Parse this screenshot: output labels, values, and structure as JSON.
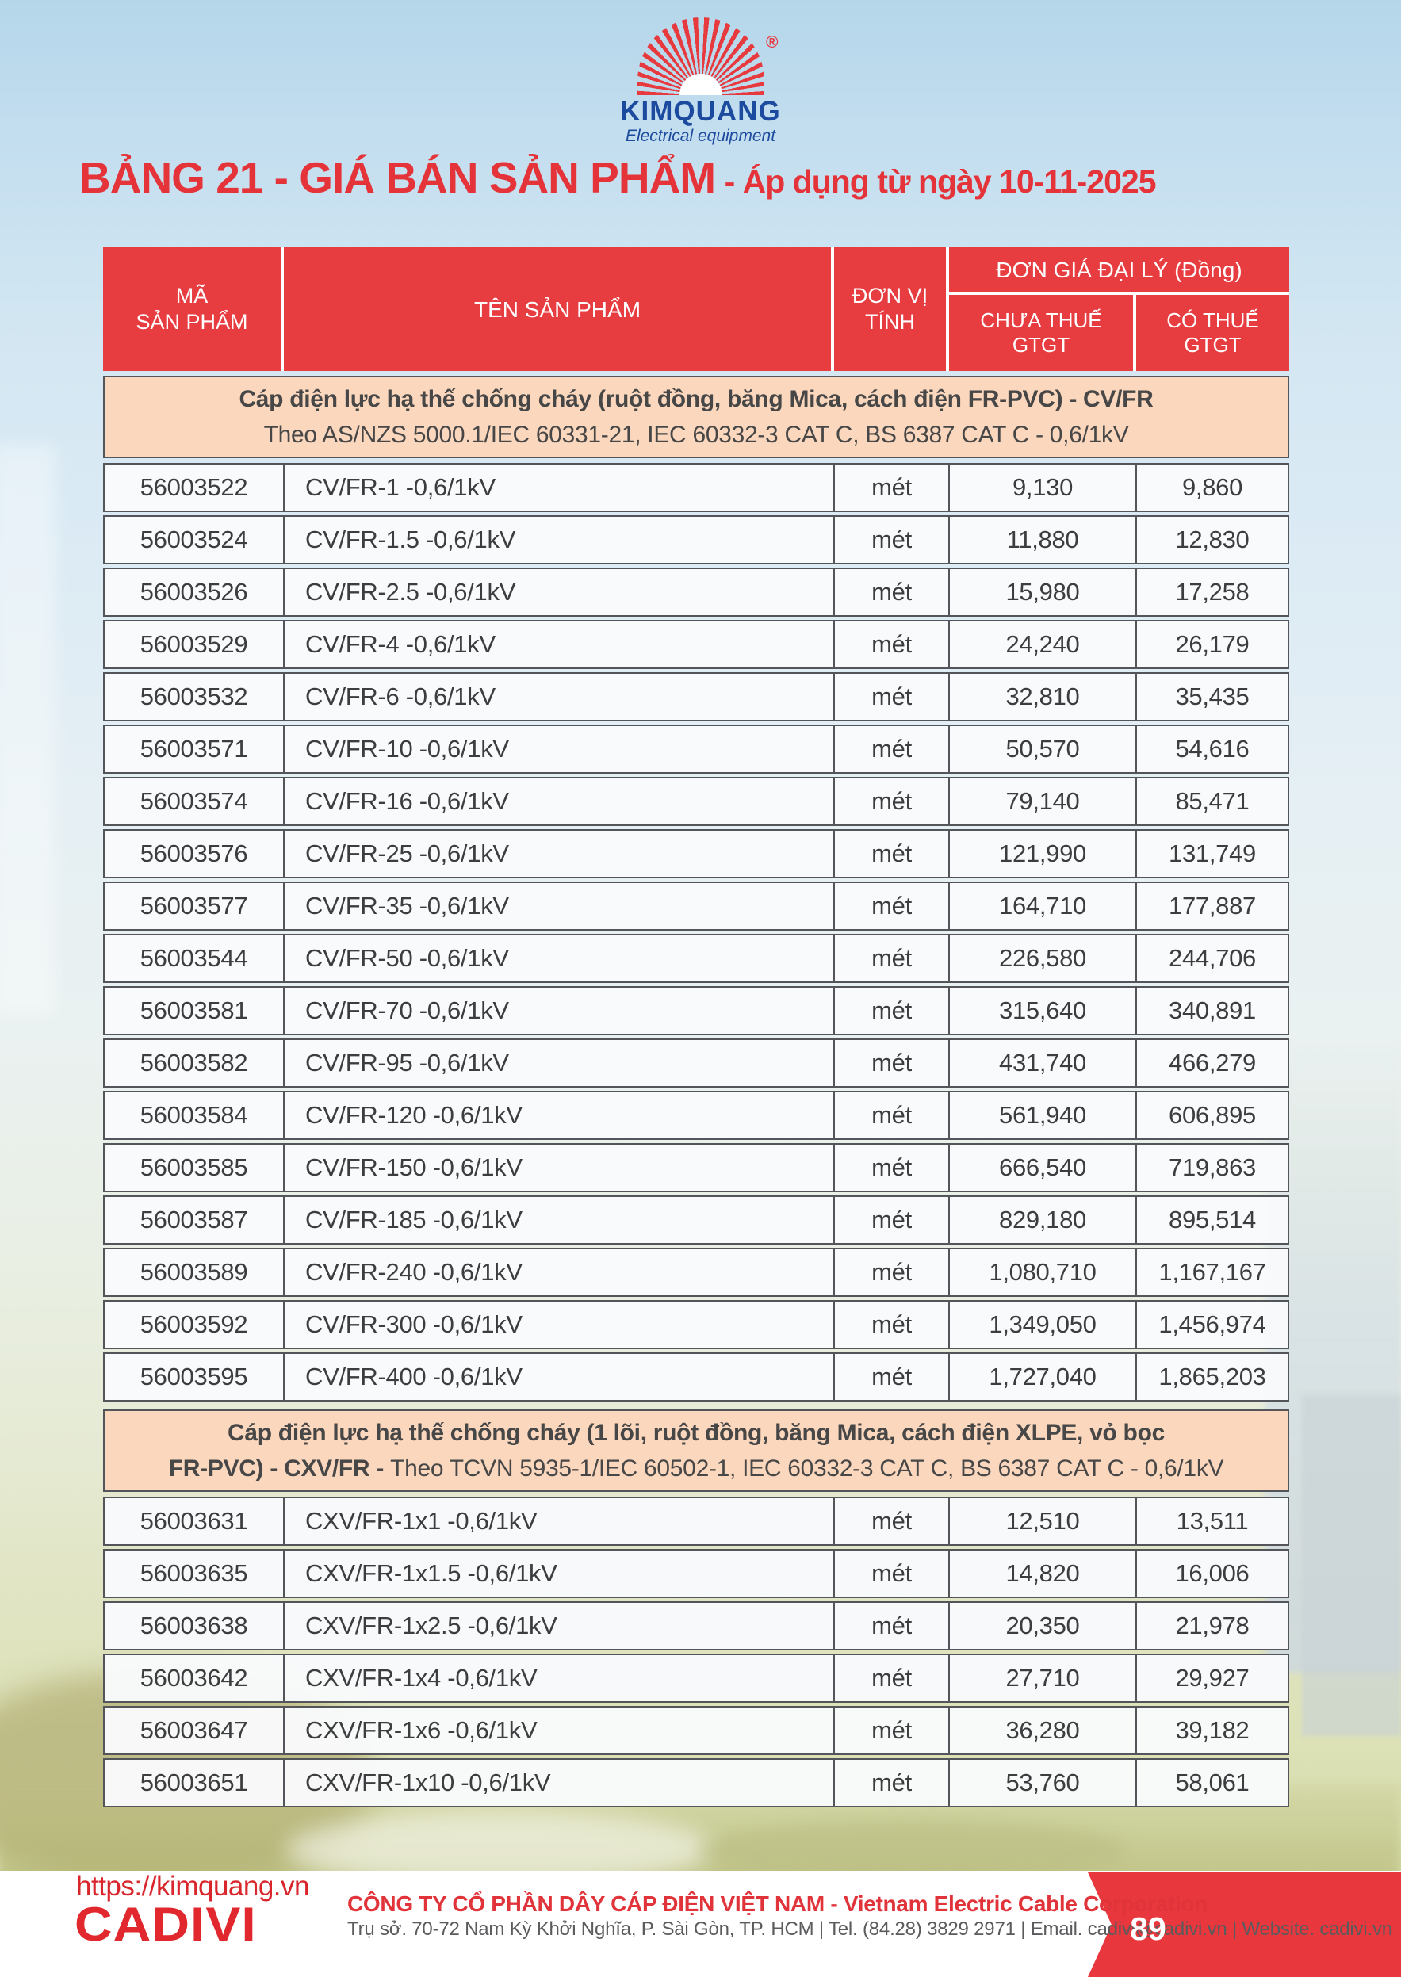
{
  "logo": {
    "brand": "KIMQUANG",
    "tagline": "Electrical equipment",
    "registered": "®"
  },
  "title": {
    "main": "BẢNG 21 - GIÁ BÁN SẢN PHẨM",
    "suffix": "- Áp dụng từ ngày 10-11-2025"
  },
  "table": {
    "header": {
      "code_l1": "MÃ",
      "code_l2": "SẢN PHẨM",
      "name": "TÊN SẢN PHẨM",
      "unit_l1": "ĐƠN VỊ",
      "unit_l2": "TÍNH",
      "price_group": "ĐƠN GIÁ ĐẠI LÝ (Đồng)",
      "ex_l1": "CHƯA THUẾ",
      "ex_l2": "GTGT",
      "inc_l1": "CÓ THUẾ",
      "inc_l2": "GTGT"
    },
    "sections": [
      {
        "lines": [
          [
            {
              "t": "Cáp điện lực hạ thế chống cháy (ruột đồng, băng Mica, cách điện FR-PVC) - CV/FR",
              "b": true
            }
          ],
          [
            {
              "t": "Theo AS/NZS 5000.1/IEC 60331-21, IEC 60332-3 CAT C, BS 6387 CAT C - 0,6/1kV",
              "b": false
            }
          ]
        ],
        "rows": [
          [
            "56003522",
            "CV/FR-1 -0,6/1kV",
            "mét",
            "9,130",
            "9,860"
          ],
          [
            "56003524",
            "CV/FR-1.5 -0,6/1kV",
            "mét",
            "11,880",
            "12,830"
          ],
          [
            "56003526",
            "CV/FR-2.5 -0,6/1kV",
            "mét",
            "15,980",
            "17,258"
          ],
          [
            "56003529",
            "CV/FR-4 -0,6/1kV",
            "mét",
            "24,240",
            "26,179"
          ],
          [
            "56003532",
            "CV/FR-6 -0,6/1kV",
            "mét",
            "32,810",
            "35,435"
          ],
          [
            "56003571",
            "CV/FR-10 -0,6/1kV",
            "mét",
            "50,570",
            "54,616"
          ],
          [
            "56003574",
            "CV/FR-16 -0,6/1kV",
            "mét",
            "79,140",
            "85,471"
          ],
          [
            "56003576",
            "CV/FR-25 -0,6/1kV",
            "mét",
            "121,990",
            "131,749"
          ],
          [
            "56003577",
            "CV/FR-35 -0,6/1kV",
            "mét",
            "164,710",
            "177,887"
          ],
          [
            "56003544",
            "CV/FR-50 -0,6/1kV",
            "mét",
            "226,580",
            "244,706"
          ],
          [
            "56003581",
            "CV/FR-70 -0,6/1kV",
            "mét",
            "315,640",
            "340,891"
          ],
          [
            "56003582",
            "CV/FR-95 -0,6/1kV",
            "mét",
            "431,740",
            "466,279"
          ],
          [
            "56003584",
            "CV/FR-120 -0,6/1kV",
            "mét",
            "561,940",
            "606,895"
          ],
          [
            "56003585",
            "CV/FR-150 -0,6/1kV",
            "mét",
            "666,540",
            "719,863"
          ],
          [
            "56003587",
            "CV/FR-185 -0,6/1kV",
            "mét",
            "829,180",
            "895,514"
          ],
          [
            "56003589",
            "CV/FR-240 -0,6/1kV",
            "mét",
            "1,080,710",
            "1,167,167"
          ],
          [
            "56003592",
            "CV/FR-300 -0,6/1kV",
            "mét",
            "1,349,050",
            "1,456,974"
          ],
          [
            "56003595",
            "CV/FR-400 -0,6/1kV",
            "mét",
            "1,727,040",
            "1,865,203"
          ]
        ]
      },
      {
        "lines": [
          [
            {
              "t": "Cáp điện lực hạ thế chống cháy (1 lõi, ruột đồng, băng Mica, cách điện XLPE, vỏ bọc",
              "b": true
            }
          ],
          [
            {
              "t": "FR-PVC) - CXV/FR - ",
              "b": true
            },
            {
              "t": "Theo TCVN 5935-1/IEC 60502-1, IEC 60332-3 CAT C, BS 6387 CAT C - 0,6/1kV",
              "b": false
            }
          ]
        ],
        "rows": [
          [
            "56003631",
            "CXV/FR-1x1 -0,6/1kV",
            "mét",
            "12,510",
            "13,511"
          ],
          [
            "56003635",
            "CXV/FR-1x1.5 -0,6/1kV",
            "mét",
            "14,820",
            "16,006"
          ],
          [
            "56003638",
            "CXV/FR-1x2.5 -0,6/1kV",
            "mét",
            "20,350",
            "21,978"
          ],
          [
            "56003642",
            "CXV/FR-1x4 -0,6/1kV",
            "mét",
            "27,710",
            "29,927"
          ],
          [
            "56003647",
            "CXV/FR-1x6 -0,6/1kV",
            "mét",
            "36,280",
            "39,182"
          ],
          [
            "56003651",
            "CXV/FR-1x10 -0,6/1kV",
            "mét",
            "53,760",
            "58,061"
          ]
        ]
      }
    ]
  },
  "footer": {
    "url": "https://kimquang.vn",
    "brand": "CADIVI",
    "company": "CÔNG TY CỔ PHẦN DÂY CÁP ĐIỆN VIỆT NAM - Vietnam Electric Cable Corporation",
    "address": "Trụ sở. 70-72 Nam Kỳ Khởi Nghĩa, P. Sài Gòn, TP. HCM | Tel. (84.28) 3829 2971 | Email. cadivi@cadivi.vn | Website. cadivi.vn",
    "page": "89"
  },
  "colors": {
    "header_red": "#e73c40",
    "title_red": "#e5333a",
    "section_peach": "#fbd7bd",
    "border_dark": "#54555a",
    "brand_blue": "#1c4a9e",
    "footer_red": "#e8383e"
  }
}
